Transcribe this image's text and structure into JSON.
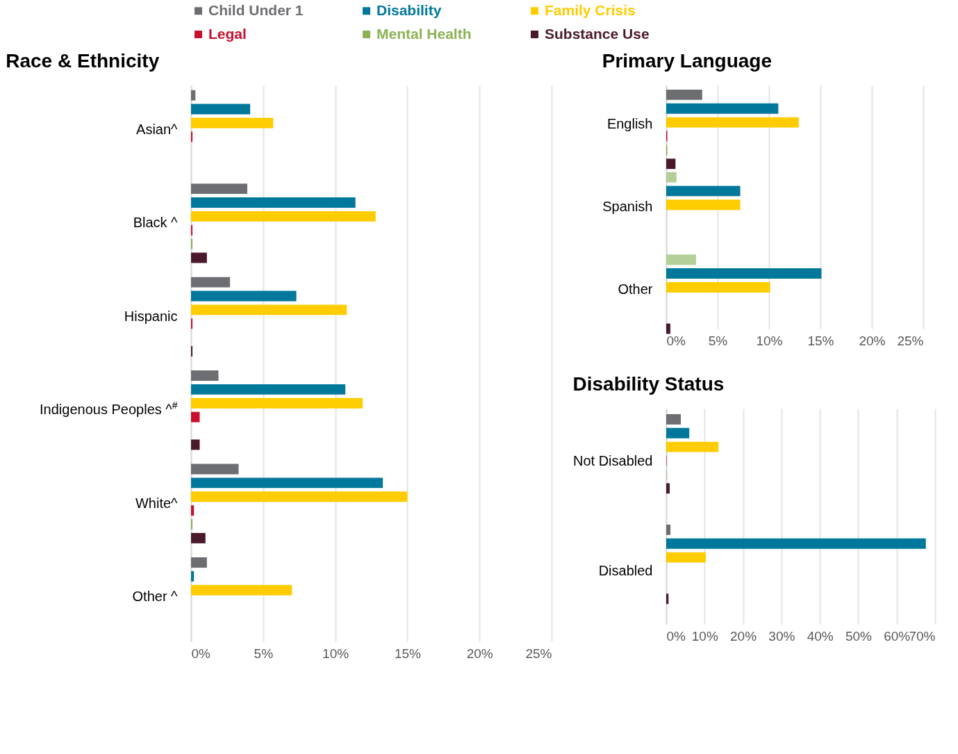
{
  "chart_data": [
    {
      "type": "bar",
      "orientation": "horizontal",
      "title": "Race & Ethnicity",
      "legend": "top",
      "grid": "x",
      "categories": [
        "Asian^",
        "Black ^",
        "Hispanic",
        "Indigenous Peoples ^$^{#}$",
        "White^",
        "Other ^"
      ],
      "series": [
        {
          "name": "Child Under 1",
          "color": "#6d6e71",
          "values": [
            0.3,
            3.9,
            2.7,
            1.9,
            3.3,
            1.1
          ]
        },
        {
          "name": "Disability",
          "color": "#00789c",
          "values": [
            4.1,
            11.4,
            7.3,
            10.7,
            13.3,
            0.2
          ]
        },
        {
          "name": "Family Crisis",
          "color": "#ffcc00",
          "values": [
            5.7,
            12.8,
            10.8,
            11.9,
            15.0,
            7.0
          ]
        },
        {
          "name": "Legal",
          "color": "#c8102e",
          "values": [
            0.1,
            0.1,
            0.1,
            0.6,
            0.2,
            null
          ]
        },
        {
          "name": "Mental Health",
          "color": "#8db255",
          "values": [
            null,
            0.1,
            null,
            null,
            0.1,
            null
          ]
        },
        {
          "name": "Substance Use",
          "color": "#4a1a2c",
          "values": [
            null,
            1.1,
            0.1,
            0.6,
            1.0,
            null
          ]
        }
      ],
      "xlim": [
        0,
        25
      ],
      "xticks": [
        {
          "value": 0,
          "label": "0%"
        },
        {
          "value": 5,
          "label": "5%"
        },
        {
          "value": 10,
          "label": "10%"
        },
        {
          "value": 15,
          "label": "15%"
        },
        {
          "value": 20,
          "label": "20%"
        },
        {
          "value": 25,
          "label": "25%"
        }
      ]
    },
    {
      "type": "bar",
      "orientation": "horizontal",
      "title": "Primary Language",
      "grid": "x",
      "categories": [
        "English",
        "Spanish",
        "Other"
      ],
      "series": [
        {
          "name": "Child Under 1",
          "color": "#6d6e71",
          "colors": [
            "#6d6e71",
            "#b5cf98",
            "#b5cf98"
          ],
          "values": [
            3.5,
            1.0,
            2.9
          ]
        },
        {
          "name": "Disability",
          "color": "#00789c",
          "values": [
            10.9,
            7.2,
            15.1
          ]
        },
        {
          "name": "Family Crisis",
          "color": "#ffcc00",
          "values": [
            12.9,
            7.2,
            10.1
          ]
        },
        {
          "name": "Legal",
          "color": "#c8102e",
          "values": [
            0.1,
            null,
            null
          ]
        },
        {
          "name": "Mental Health",
          "color": "#8db255",
          "values": [
            0.1,
            null,
            null
          ]
        },
        {
          "name": "Substance Use",
          "color": "#4a1a2c",
          "values": [
            0.9,
            null,
            0.4
          ]
        }
      ],
      "xlim": [
        0,
        25
      ],
      "xticks": [
        {
          "value": 0,
          "label": "0%"
        },
        {
          "value": 5,
          "label": "5%"
        },
        {
          "value": 10,
          "label": "10%"
        },
        {
          "value": 15,
          "label": "15%"
        },
        {
          "value": 20,
          "label": "20%"
        },
        {
          "value": 25,
          "label": "25%"
        }
      ]
    },
    {
      "type": "bar",
      "orientation": "horizontal",
      "title": "Disability Status",
      "grid": "x",
      "categories": [
        "Not Disabled",
        "Disabled"
      ],
      "series": [
        {
          "name": "Child Under 1",
          "color": "#6d6e71",
          "values": [
            3.8,
            1.1
          ]
        },
        {
          "name": "Disability",
          "color": "#00789c",
          "values": [
            6.0,
            67.6
          ]
        },
        {
          "name": "Family Crisis",
          "color": "#ffcc00",
          "values": [
            13.6,
            10.3
          ]
        },
        {
          "name": "Legal",
          "color": "#c8102e",
          "values": [
            0.1,
            null
          ]
        },
        {
          "name": "Mental Health",
          "color": "#8db255",
          "values": [
            0.1,
            null
          ]
        },
        {
          "name": "Substance Use",
          "color": "#4a1a2c",
          "values": [
            0.9,
            0.6
          ]
        }
      ],
      "xlim": [
        0,
        70
      ],
      "xticks": [
        {
          "value": 0,
          "label": "0%"
        },
        {
          "value": 10,
          "label": "10%"
        },
        {
          "value": 20,
          "label": "20%"
        },
        {
          "value": 30,
          "label": "30%"
        },
        {
          "value": 40,
          "label": "40%"
        },
        {
          "value": 50,
          "label": "50%"
        },
        {
          "value": 60,
          "label": "60%"
        },
        {
          "value": 70,
          "label": "70%"
        }
      ]
    }
  ]
}
